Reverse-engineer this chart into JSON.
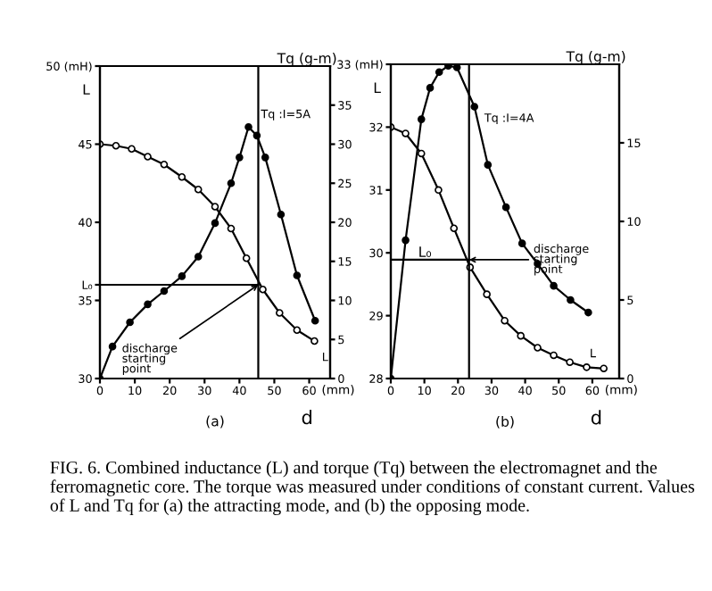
{
  "chart_data": [
    {
      "type": "line",
      "title": "(a)",
      "xlabel": "d",
      "ylabel": "L",
      "y2label": "Tq (g-m)",
      "legend": false,
      "grid": false,
      "marker": "circle",
      "xlim": [
        0,
        66
      ],
      "xticks": [
        0,
        10,
        20,
        30,
        40,
        50,
        60
      ],
      "ylim": [
        30,
        50
      ],
      "yticks": [
        30,
        35,
        {
          "value": 36,
          "label": "L₀"
        },
        40,
        45,
        {
          "value": 50,
          "label": "50 (mH)"
        }
      ],
      "y2lim": [
        0,
        40
      ],
      "y2ticks": [
        0,
        5,
        10,
        15,
        20,
        25,
        30,
        35
      ],
      "series": [
        {
          "color": "#000000",
          "x": [
            0,
            4.6,
            9.1,
            13.7,
            18.4,
            23.5,
            28.2,
            33.0,
            37.6,
            42.0,
            46.7,
            51.5,
            56.5,
            61.5
          ],
          "values": [
            45.0,
            44.9,
            44.7,
            44.2,
            43.7,
            42.9,
            42.1,
            41.0,
            39.6,
            37.7,
            35.7,
            34.2,
            33.1,
            32.4
          ]
        },
        {
          "color": "#000000",
          "axis": "y2",
          "x": [
            0,
            3.6,
            8.6,
            13.7,
            18.4,
            23.5,
            28.2,
            33.0,
            37.6,
            40.0,
            42.6,
            45.0,
            47.4,
            51.9,
            56.5,
            61.7
          ],
          "values": [
            0,
            4.1,
            7.2,
            9.5,
            11.2,
            13.1,
            15.6,
            19.9,
            25.0,
            28.3,
            32.2,
            31.1,
            28.3,
            21.0,
            13.2,
            7.4
          ]
        }
      ],
      "ref_lines": [
        {
          "axis": "x",
          "value": 45.4,
          "label": null
        },
        {
          "axis": "y",
          "value": 36.0,
          "label": null
        }
      ],
      "annotations": [
        {
          "text": "Tq :I=5A",
          "x": 42.6,
          "y": 46.2
        },
        {
          "text": "discharge starting point",
          "x": 45.4,
          "y": 36.0
        },
        {
          "text": "L",
          "x": 61.5,
          "y": 32.4
        },
        "(mm)"
      ]
    },
    {
      "type": "line",
      "title": "(b)",
      "xlabel": "d",
      "ylabel": "L",
      "y2label": "Tq (g-m)",
      "legend": false,
      "grid": false,
      "marker": "circle",
      "xlim": [
        0,
        68
      ],
      "xticks": [
        0,
        10,
        20,
        30,
        40,
        50,
        60
      ],
      "ylim": [
        28,
        33
      ],
      "yticks": [
        28,
        29,
        30,
        31,
        32,
        {
          "value": 33,
          "label": "33 (mH)"
        }
      ],
      "y2lim": [
        0,
        20
      ],
      "y2ticks": [
        0,
        5,
        10,
        15
      ],
      "series": [
        {
          "color": "#000000",
          "x": [
            0,
            4.4,
            9.1,
            14.2,
            18.8,
            23.6,
            28.6,
            33.9,
            38.7,
            43.7,
            48.5,
            53.3,
            58.3,
            63.4
          ],
          "values": [
            32.0,
            31.9,
            31.58,
            31.0,
            30.39,
            29.77,
            29.34,
            28.92,
            28.68,
            28.49,
            28.37,
            28.26,
            28.18,
            28.16
          ]
        },
        {
          "color": "#000000",
          "axis": "y2",
          "x": [
            0,
            4.4,
            9.1,
            11.7,
            14.4,
            17.1,
            19.7,
            24.9,
            28.9,
            34.3,
            39.1,
            43.7,
            48.5,
            53.5,
            58.8
          ],
          "values": [
            0,
            8.8,
            16.5,
            18.5,
            19.5,
            19.9,
            19.8,
            17.3,
            13.6,
            10.9,
            8.6,
            7.3,
            5.9,
            5.0,
            4.2
          ]
        }
      ],
      "ref_lines": [
        {
          "axis": "x",
          "value": 23.3,
          "label": null
        },
        {
          "axis": "y",
          "value": 29.89,
          "label": "L₀"
        }
      ],
      "annotations": [
        {
          "text": "Tq :I=4A",
          "x": 24.9,
          "y": 32.4
        },
        {
          "text": "discharge starting point",
          "x": 23.3,
          "y": 29.89
        },
        {
          "text": "L",
          "x": 53.3,
          "y": 28.26
        },
        "(mm)",
        "FIG. 6. Combined inductance (L) and torque (Tq) between the electromagnet and the ferromagnetic core. The torque was measured under conditions of constant current. Values of L and Tq for (a) the attracting mode, and (b) the opposing mode."
      ]
    }
  ]
}
